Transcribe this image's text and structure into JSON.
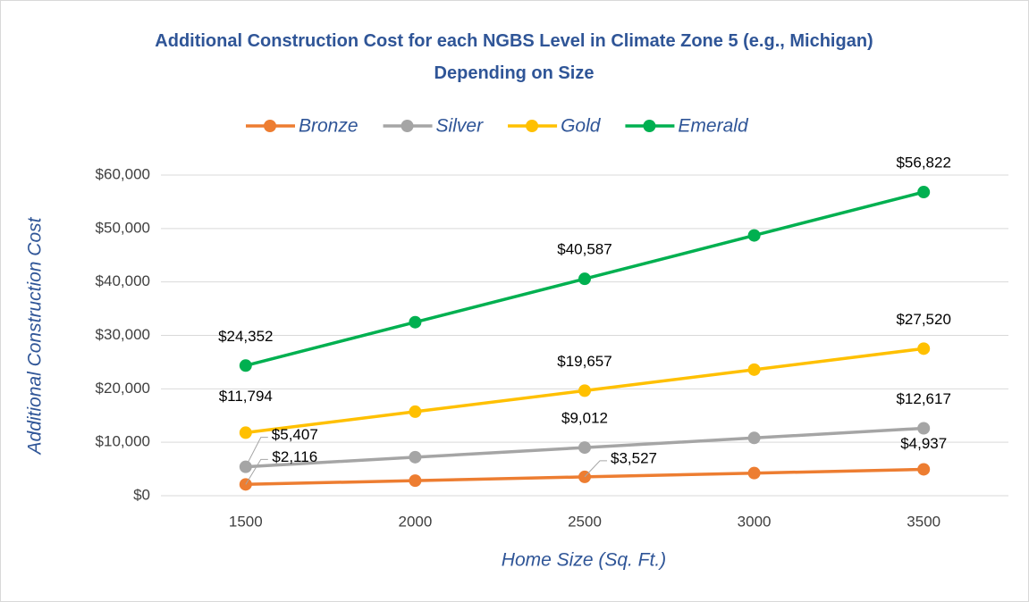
{
  "chart_data": {
    "type": "line",
    "title": "Additional Construction Cost for each NGBS Level in Climate Zone 5 (e.g., Michigan) Depending on Size",
    "x_label": "Home Size (Sq. Ft.)",
    "y_label": "Additional Construction Cost",
    "categories": [
      "1500",
      "2000",
      "2500",
      "3000",
      "3500"
    ],
    "series": [
      {
        "name": "Bronze",
        "color": "#ed7d31",
        "values": [
          2116,
          2822,
          3527,
          4232,
          4937
        ],
        "value_labels": [
          "$2,116",
          null,
          "$3,527",
          null,
          "$4,937"
        ]
      },
      {
        "name": "Silver",
        "color": "#a5a5a5",
        "values": [
          5407,
          7210,
          9012,
          10815,
          12617
        ],
        "value_labels": [
          "$5,407",
          null,
          "$9,012",
          null,
          "$12,617"
        ]
      },
      {
        "name": "Gold",
        "color": "#ffc000",
        "values": [
          11794,
          15726,
          19657,
          23589,
          27520
        ],
        "value_labels": [
          "$11,794",
          null,
          "$19,657",
          null,
          "$27,520"
        ]
      },
      {
        "name": "Emerald",
        "color": "#00b050",
        "values": [
          24352,
          32470,
          40587,
          48705,
          56822
        ],
        "value_labels": [
          "$24,352",
          null,
          "$40,587",
          null,
          "$56,822"
        ]
      }
    ],
    "ylim": [
      0,
      60000
    ],
    "yticks": [
      {
        "value": 0,
        "label": "$0"
      },
      {
        "value": 10000,
        "label": "$10,000"
      },
      {
        "value": 20000,
        "label": "$20,000"
      },
      {
        "value": 30000,
        "label": "$30,000"
      },
      {
        "value": 40000,
        "label": "$40,000"
      },
      {
        "value": 50000,
        "label": "$50,000"
      },
      {
        "value": 60000,
        "label": "$60,000"
      }
    ],
    "grid": true,
    "legend": "top"
  }
}
